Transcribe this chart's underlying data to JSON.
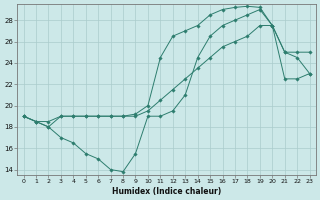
{
  "xlabel": "Humidex (Indice chaleur)",
  "bg_color": "#cce8e8",
  "line_color": "#2d7d6e",
  "grid_color": "#aacccc",
  "xlim": [
    -0.5,
    23.5
  ],
  "ylim": [
    13.5,
    29.5
  ],
  "yticks": [
    14,
    16,
    18,
    20,
    22,
    24,
    26,
    28
  ],
  "xticks": [
    0,
    1,
    2,
    3,
    4,
    5,
    6,
    7,
    8,
    9,
    10,
    11,
    12,
    13,
    14,
    15,
    16,
    17,
    18,
    19,
    20,
    21,
    22,
    23
  ],
  "xtick_labels": [
    "0",
    "1",
    "2",
    "3",
    "4",
    "5",
    "6",
    "7",
    "8",
    "9",
    "10",
    "11",
    "12",
    "13",
    "14",
    "15",
    "16",
    "17",
    "18",
    "19",
    "20",
    "21",
    "22",
    "23"
  ],
  "series1_x": [
    0,
    1,
    2,
    3,
    4,
    5,
    6,
    7,
    8,
    9,
    10,
    11,
    12,
    13,
    14,
    15,
    16,
    17,
    18,
    19,
    20,
    21,
    22,
    23
  ],
  "series1_y": [
    19.0,
    18.5,
    18.0,
    19.0,
    19.0,
    19.0,
    19.0,
    19.0,
    19.0,
    19.0,
    19.5,
    20.5,
    21.5,
    22.5,
    23.5,
    24.5,
    25.5,
    26.0,
    26.5,
    27.5,
    27.5,
    22.5,
    22.5,
    23.0
  ],
  "series2_x": [
    0,
    1,
    2,
    3,
    4,
    5,
    6,
    7,
    8,
    9,
    10,
    11,
    12,
    13,
    14,
    15,
    16,
    17,
    18,
    19,
    20,
    21,
    22,
    23
  ],
  "series2_y": [
    19.0,
    18.5,
    18.0,
    17.0,
    16.5,
    15.5,
    15.0,
    14.0,
    13.8,
    15.5,
    19.0,
    19.0,
    19.5,
    21.0,
    24.5,
    26.5,
    27.5,
    28.0,
    28.5,
    29.0,
    27.5,
    25.0,
    24.5,
    23.0
  ],
  "series3_x": [
    0,
    1,
    2,
    3,
    4,
    5,
    6,
    7,
    8,
    9,
    10,
    11,
    12,
    13,
    14,
    15,
    16,
    17,
    18,
    19,
    20,
    21,
    22,
    23
  ],
  "series3_y": [
    19.0,
    18.5,
    18.5,
    19.0,
    19.0,
    19.0,
    19.0,
    19.0,
    19.0,
    19.2,
    20.0,
    24.5,
    26.5,
    27.0,
    27.5,
    28.5,
    29.0,
    29.2,
    29.3,
    29.2,
    27.5,
    25.0,
    25.0,
    25.0
  ]
}
